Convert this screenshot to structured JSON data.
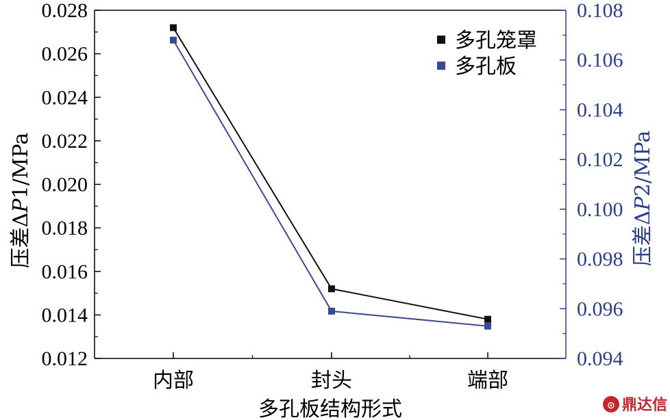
{
  "chart_data": {
    "type": "line",
    "categories": [
      "内部",
      "封头",
      "端部"
    ],
    "xlabel": "多孔板结构形式",
    "y_left": {
      "label_prefix": "压差Δ",
      "label_var": "P",
      "label_suffix": "1/MPa",
      "ylim": [
        0.012,
        0.028
      ],
      "ticks": [
        "0.012",
        "0.014",
        "0.016",
        "0.018",
        "0.020",
        "0.022",
        "0.024",
        "0.026",
        "0.028"
      ]
    },
    "y_right": {
      "label_prefix": "压差Δ",
      "label_var": "P",
      "label_suffix": "2/MPa",
      "ylim": [
        0.094,
        0.108
      ],
      "ticks": [
        "0.094",
        "0.096",
        "0.098",
        "0.100",
        "0.102",
        "0.104",
        "0.106",
        "0.108"
      ]
    },
    "series": [
      {
        "name": "多孔笼罩",
        "axis": "left",
        "values": [
          0.0272,
          0.0152,
          0.0138
        ],
        "color": "#111111"
      },
      {
        "name": "多孔板",
        "axis": "right",
        "values": [
          0.1068,
          0.0959,
          0.0953
        ],
        "color": "#3a4a92"
      }
    ],
    "legend_position": "top-right",
    "grid": false,
    "colors": {
      "left_axis": "#000000",
      "right_axis": "#2b3f8c"
    }
  },
  "watermark": {
    "text": "鼎达信",
    "color": "#c0282d"
  }
}
